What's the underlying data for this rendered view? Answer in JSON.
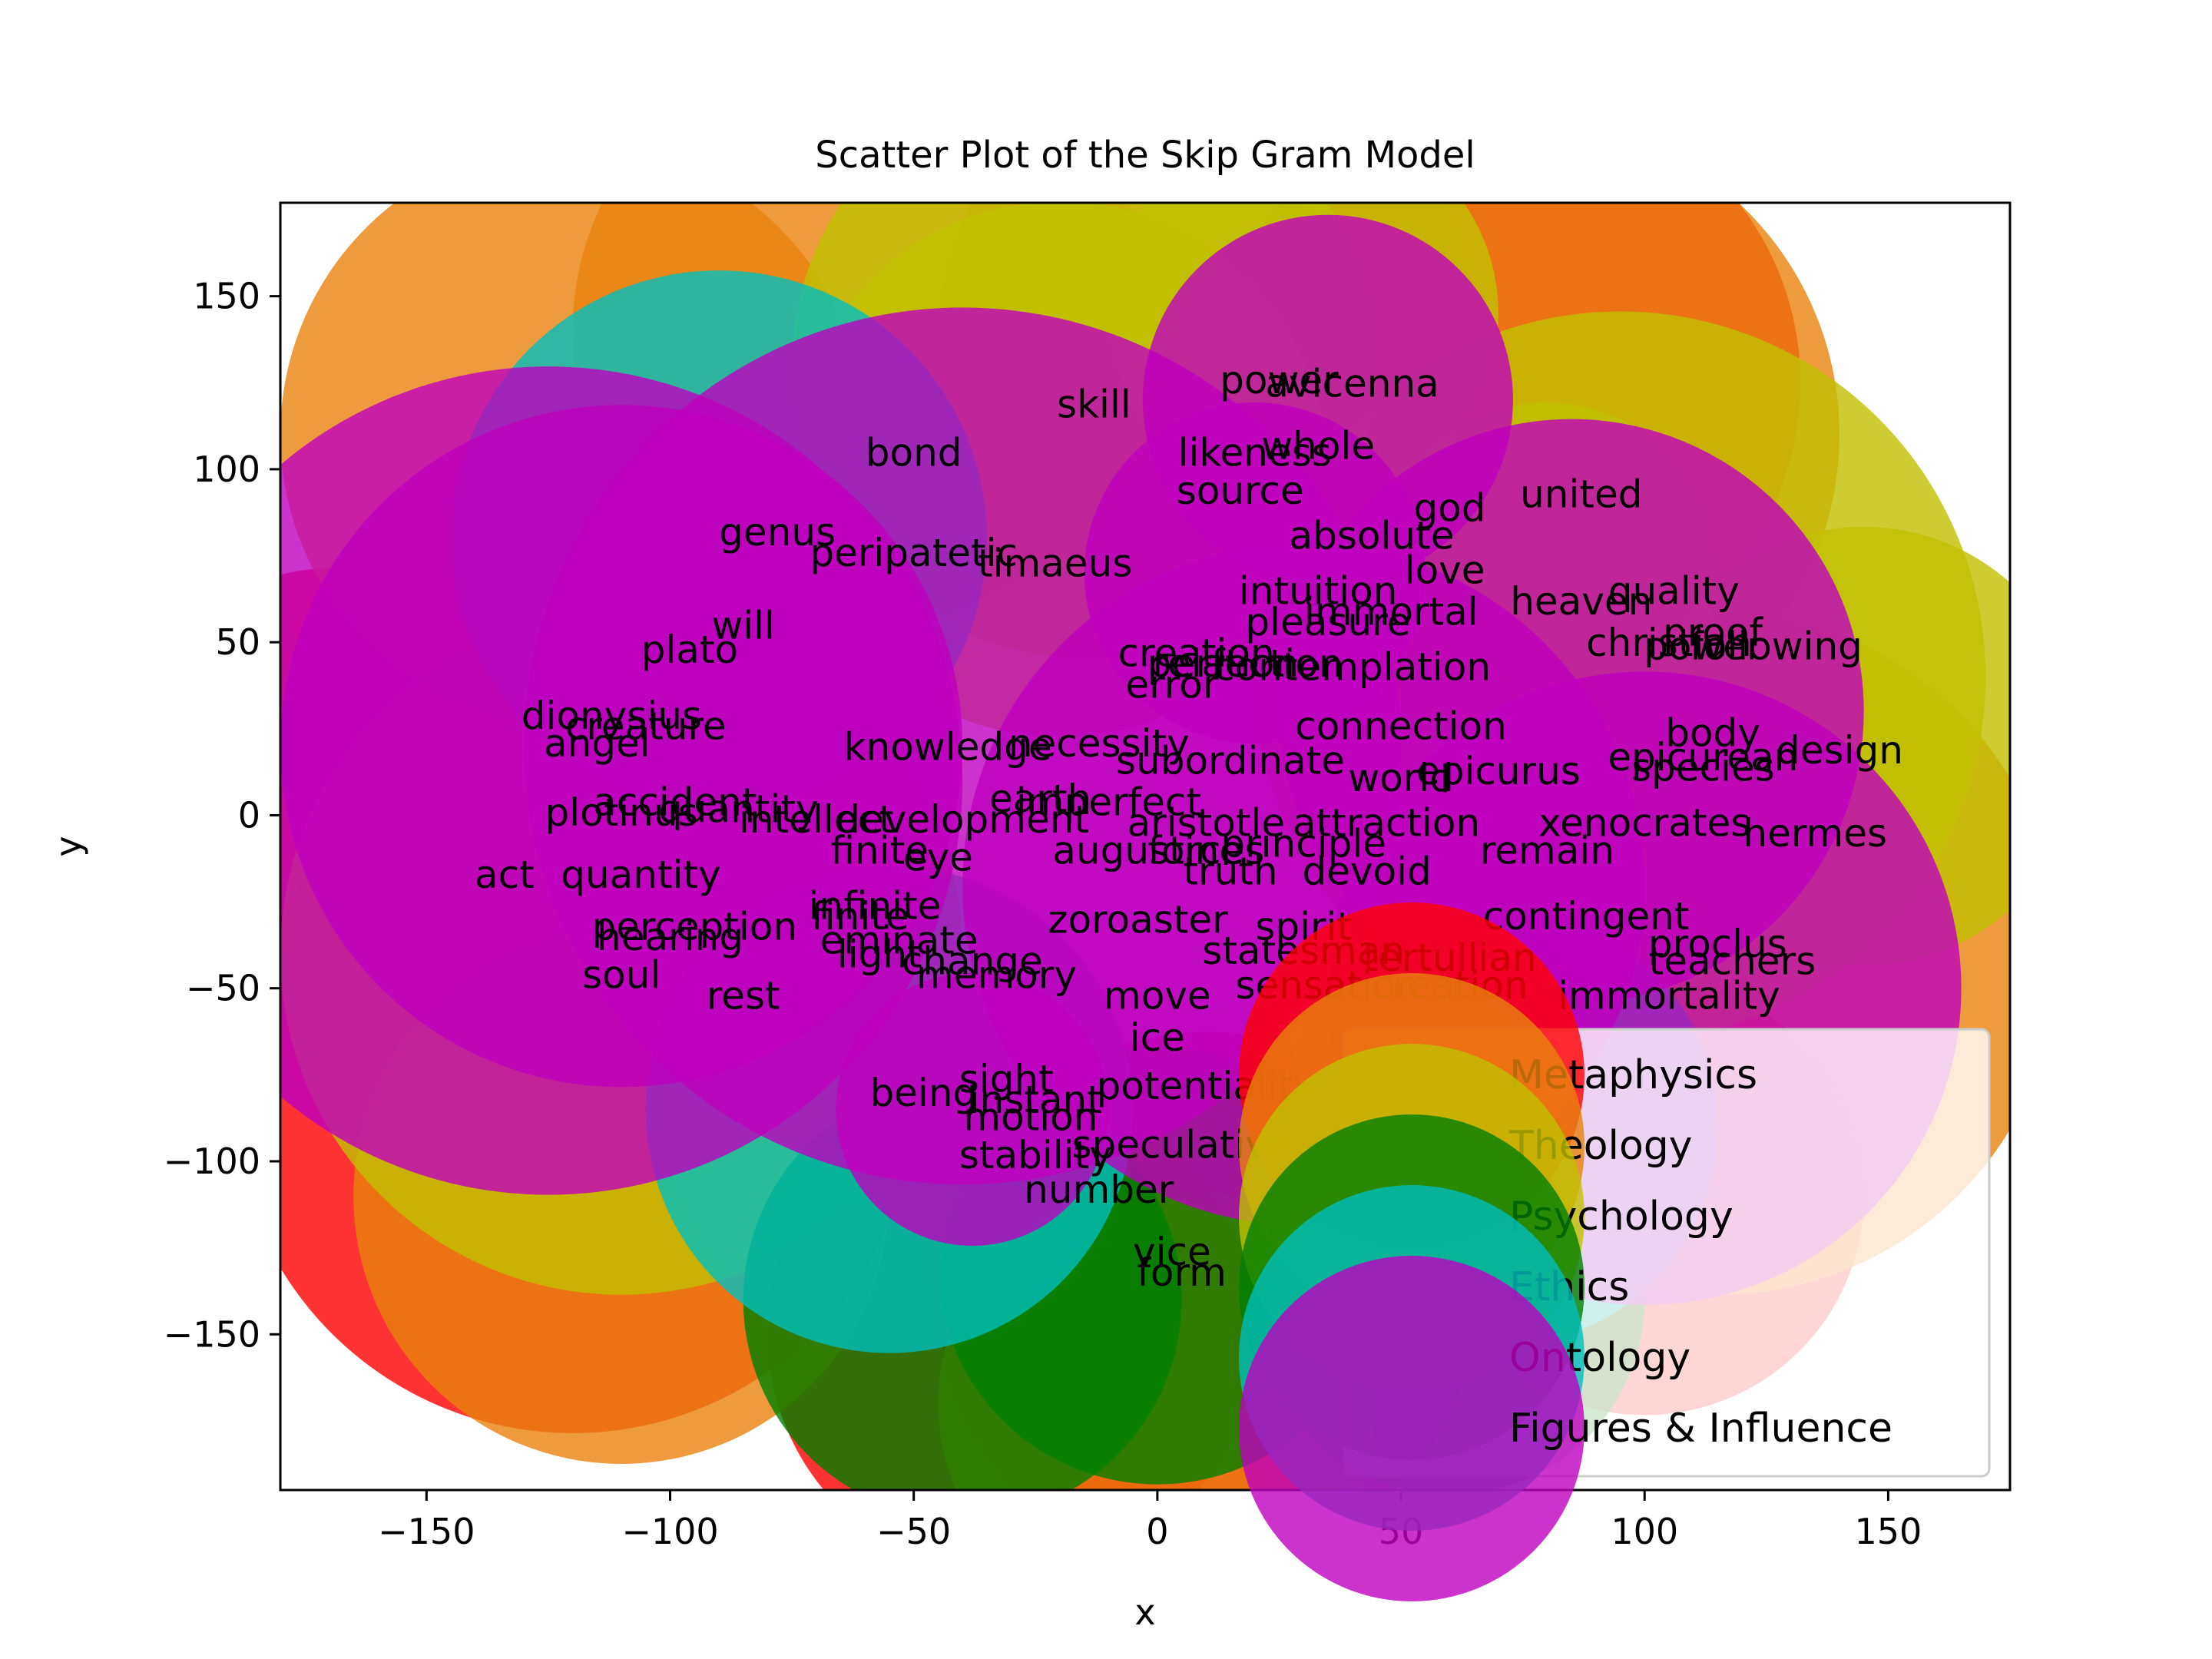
{
  "chart_data": {
    "type": "scatter",
    "title": "Scatter Plot of the Skip Gram Model",
    "xlabel": "x",
    "ylabel": "y",
    "xlim": [
      -180,
      175
    ],
    "ylim": [
      -195,
      177
    ],
    "xticks": [
      -150,
      -100,
      -50,
      0,
      50,
      100,
      150
    ],
    "yticks": [
      -150,
      -100,
      -50,
      0,
      50,
      100,
      150
    ],
    "xtick_labels": [
      "−150",
      "−100",
      "−50",
      "0",
      "50",
      "100",
      "150"
    ],
    "ytick_labels": [
      "−150",
      "−100",
      "−50",
      "0",
      "50",
      "100",
      "150"
    ],
    "grid": false,
    "legend_position": "lower-right",
    "series": [
      {
        "name": "Metaphysics",
        "color": "#ff0000"
      },
      {
        "name": "Theology",
        "color": "#e8820c"
      },
      {
        "name": "Psychology",
        "color": "#c0c000"
      },
      {
        "name": "Ethics",
        "color": "#008000"
      },
      {
        "name": "Ontology",
        "color": "#00bfbf"
      },
      {
        "name": "Figures & Influence",
        "color": "#bf00bf"
      }
    ],
    "bubbles": [
      {
        "x": 72,
        "y": 125,
        "r": 60,
        "series": 0
      },
      {
        "x": -120,
        "y": -80,
        "r": 70,
        "series": 0
      },
      {
        "x": 10,
        "y": -140,
        "r": 55,
        "series": 0
      },
      {
        "x": -30,
        "y": -150,
        "r": 50,
        "series": 0
      },
      {
        "x": 100,
        "y": -110,
        "r": 45,
        "series": 0
      },
      {
        "x": -170,
        "y": 15,
        "r": 40,
        "series": 0
      },
      {
        "x": -60,
        "y": 140,
        "r": 60,
        "series": 1
      },
      {
        "x": 10,
        "y": 140,
        "r": 55,
        "series": 1
      },
      {
        "x": 75,
        "y": 110,
        "r": 65,
        "series": 1
      },
      {
        "x": -120,
        "y": 110,
        "r": 60,
        "series": 1
      },
      {
        "x": -110,
        "y": -110,
        "r": 55,
        "series": 1
      },
      {
        "x": 115,
        "y": -40,
        "r": 70,
        "series": 1
      },
      {
        "x": 0,
        "y": -170,
        "r": 45,
        "series": 1
      },
      {
        "x": -15,
        "y": 130,
        "r": 60,
        "series": 2
      },
      {
        "x": -20,
        "y": 100,
        "r": 55,
        "series": 2
      },
      {
        "x": 95,
        "y": 40,
        "r": 75,
        "series": 2
      },
      {
        "x": 145,
        "y": 20,
        "r": 45,
        "series": 2
      },
      {
        "x": -110,
        "y": -40,
        "r": 70,
        "series": 2
      },
      {
        "x": 30,
        "y": 145,
        "r": 40,
        "series": 2
      },
      {
        "x": 80,
        "y": 70,
        "r": 35,
        "series": 2
      },
      {
        "x": 0,
        "y": -130,
        "r": 45,
        "series": 3
      },
      {
        "x": -40,
        "y": -140,
        "r": 45,
        "series": 3
      },
      {
        "x": 60,
        "y": -140,
        "r": 40,
        "series": 3
      },
      {
        "x": -90,
        "y": 80,
        "r": 55,
        "series": 4
      },
      {
        "x": -55,
        "y": -85,
        "r": 50,
        "series": 4
      },
      {
        "x": 70,
        "y": -90,
        "r": 45,
        "series": 4
      },
      {
        "x": -40,
        "y": 20,
        "r": 90,
        "series": 5
      },
      {
        "x": -110,
        "y": 20,
        "r": 70,
        "series": 5
      },
      {
        "x": -125,
        "y": 10,
        "r": 85,
        "series": 5
      },
      {
        "x": 35,
        "y": 120,
        "r": 38,
        "series": 5
      },
      {
        "x": 85,
        "y": 30,
        "r": 60,
        "series": 5
      },
      {
        "x": 100,
        "y": -50,
        "r": 65,
        "series": 5
      },
      {
        "x": 30,
        "y": -20,
        "r": 70,
        "series": 5
      },
      {
        "x": -38,
        "y": -85,
        "r": 28,
        "series": 5
      },
      {
        "x": 20,
        "y": 70,
        "r": 35,
        "series": 5
      }
    ],
    "words": [
      {
        "text": "avicenna",
        "x": 40,
        "y": 124
      },
      {
        "text": "power",
        "x": 25,
        "y": 125
      },
      {
        "text": "skill",
        "x": -13,
        "y": 118
      },
      {
        "text": "bond",
        "x": -50,
        "y": 104
      },
      {
        "text": "likeness",
        "x": 20,
        "y": 104
      },
      {
        "text": "whole",
        "x": 33,
        "y": 106
      },
      {
        "text": "source",
        "x": 17,
        "y": 93
      },
      {
        "text": "god",
        "x": 60,
        "y": 88
      },
      {
        "text": "united",
        "x": 87,
        "y": 92
      },
      {
        "text": "absolute",
        "x": 44,
        "y": 80
      },
      {
        "text": "genus",
        "x": -78,
        "y": 81
      },
      {
        "text": "peripatetic",
        "x": -50,
        "y": 75
      },
      {
        "text": "timaeus",
        "x": -21,
        "y": 72
      },
      {
        "text": "love",
        "x": 59,
        "y": 70
      },
      {
        "text": "intuition",
        "x": 33,
        "y": 64
      },
      {
        "text": "quality",
        "x": 106,
        "y": 64
      },
      {
        "text": "heaven",
        "x": 87,
        "y": 61
      },
      {
        "text": "immortal",
        "x": 48,
        "y": 58
      },
      {
        "text": "pleasure",
        "x": 35,
        "y": 55
      },
      {
        "text": "will",
        "x": -85,
        "y": 54
      },
      {
        "text": "plato",
        "x": -96,
        "y": 47
      },
      {
        "text": "creation",
        "x": 8,
        "y": 46
      },
      {
        "text": "relation",
        "x": 14,
        "y": 43
      },
      {
        "text": "perfection",
        "x": 18,
        "y": 43
      },
      {
        "text": "contemplation",
        "x": 40,
        "y": 42
      },
      {
        "text": "error",
        "x": 3,
        "y": 37
      },
      {
        "text": "proof",
        "x": 114,
        "y": 52
      },
      {
        "text": "christian",
        "x": 105,
        "y": 49
      },
      {
        "text": "following",
        "x": 127,
        "y": 48
      },
      {
        "text": "power",
        "x": 112,
        "y": 48
      },
      {
        "text": "dionysius",
        "x": -112,
        "y": 28
      },
      {
        "text": "creature",
        "x": -105,
        "y": 25
      },
      {
        "text": "angel",
        "x": -115,
        "y": 20
      },
      {
        "text": "connection",
        "x": 50,
        "y": 25
      },
      {
        "text": "body",
        "x": 114,
        "y": 23
      },
      {
        "text": "knowledge",
        "x": -43,
        "y": 19
      },
      {
        "text": "necessity",
        "x": -12,
        "y": 20
      },
      {
        "text": "subordinate",
        "x": 15,
        "y": 15
      },
      {
        "text": "epicurean",
        "x": 112,
        "y": 16
      },
      {
        "text": "design",
        "x": 140,
        "y": 18
      },
      {
        "text": "epicurus",
        "x": 70,
        "y": 12
      },
      {
        "text": "species",
        "x": 112,
        "y": 13
      },
      {
        "text": "world",
        "x": 50,
        "y": 10
      },
      {
        "text": "accident",
        "x": -99,
        "y": 3
      },
      {
        "text": "plotinus",
        "x": -110,
        "y": 0
      },
      {
        "text": "quantity",
        "x": -86,
        "y": 1
      },
      {
        "text": "intellect",
        "x": -70,
        "y": -2
      },
      {
        "text": "development",
        "x": -40,
        "y": -2
      },
      {
        "text": "earth",
        "x": -24,
        "y": 4
      },
      {
        "text": "imperfect",
        "x": -10,
        "y": 3
      },
      {
        "text": "aristotle",
        "x": 10,
        "y": -3
      },
      {
        "text": "attraction",
        "x": 47,
        "y": -3
      },
      {
        "text": "xenocrates",
        "x": 100,
        "y": -3
      },
      {
        "text": "hermes",
        "x": 135,
        "y": -6
      },
      {
        "text": "finite",
        "x": -57,
        "y": -11
      },
      {
        "text": "eye",
        "x": -45,
        "y": -13
      },
      {
        "text": "augustine",
        "x": -2,
        "y": -11
      },
      {
        "text": "forces",
        "x": 10,
        "y": -11
      },
      {
        "text": "principle",
        "x": 30,
        "y": -9
      },
      {
        "text": "remain",
        "x": 80,
        "y": -11
      },
      {
        "text": "devoid",
        "x": 43,
        "y": -17
      },
      {
        "text": "truth",
        "x": 15,
        "y": -17
      },
      {
        "text": "act",
        "x": -134,
        "y": -18
      },
      {
        "text": "quantity",
        "x": -106,
        "y": -18
      },
      {
        "text": "infinite",
        "x": -58,
        "y": -27
      },
      {
        "text": "finite",
        "x": -61,
        "y": -30
      },
      {
        "text": "zoroaster",
        "x": -4,
        "y": -31
      },
      {
        "text": "contingent",
        "x": 88,
        "y": -30
      },
      {
        "text": "perception",
        "x": -95,
        "y": -33
      },
      {
        "text": "hearing",
        "x": -100,
        "y": -36
      },
      {
        "text": "eminate",
        "x": -53,
        "y": -37
      },
      {
        "text": "proclus",
        "x": 115,
        "y": -38
      },
      {
        "text": "spirit",
        "x": 30,
        "y": -33
      },
      {
        "text": "statesman",
        "x": 30,
        "y": -40
      },
      {
        "text": "tertullian",
        "x": 60,
        "y": -42
      },
      {
        "text": "teachers",
        "x": 118,
        "y": -43
      },
      {
        "text": "soul",
        "x": -110,
        "y": -47
      },
      {
        "text": "light",
        "x": -57,
        "y": -41
      },
      {
        "text": "change",
        "x": -38,
        "y": -43
      },
      {
        "text": "memory",
        "x": -33,
        "y": -47
      },
      {
        "text": "rest",
        "x": -85,
        "y": -53
      },
      {
        "text": "move",
        "x": 0,
        "y": -53
      },
      {
        "text": "sensation",
        "x": 35,
        "y": -50
      },
      {
        "text": "creation",
        "x": 60,
        "y": -50
      },
      {
        "text": "immortality",
        "x": 105,
        "y": -53
      },
      {
        "text": "ice",
        "x": 0,
        "y": -65
      },
      {
        "text": "potentiality",
        "x": 10,
        "y": -79
      },
      {
        "text": "being",
        "x": -48,
        "y": -81
      },
      {
        "text": "sight",
        "x": -31,
        "y": -77
      },
      {
        "text": "instant",
        "x": -25,
        "y": -83
      },
      {
        "text": "motion",
        "x": -26,
        "y": -88
      },
      {
        "text": "speculative",
        "x": 5,
        "y": -96
      },
      {
        "text": "stability",
        "x": -25,
        "y": -99
      },
      {
        "text": "number",
        "x": -12,
        "y": -109
      },
      {
        "text": "vice",
        "x": 3,
        "y": -127
      },
      {
        "text": "form",
        "x": 5,
        "y": -133
      }
    ]
  }
}
